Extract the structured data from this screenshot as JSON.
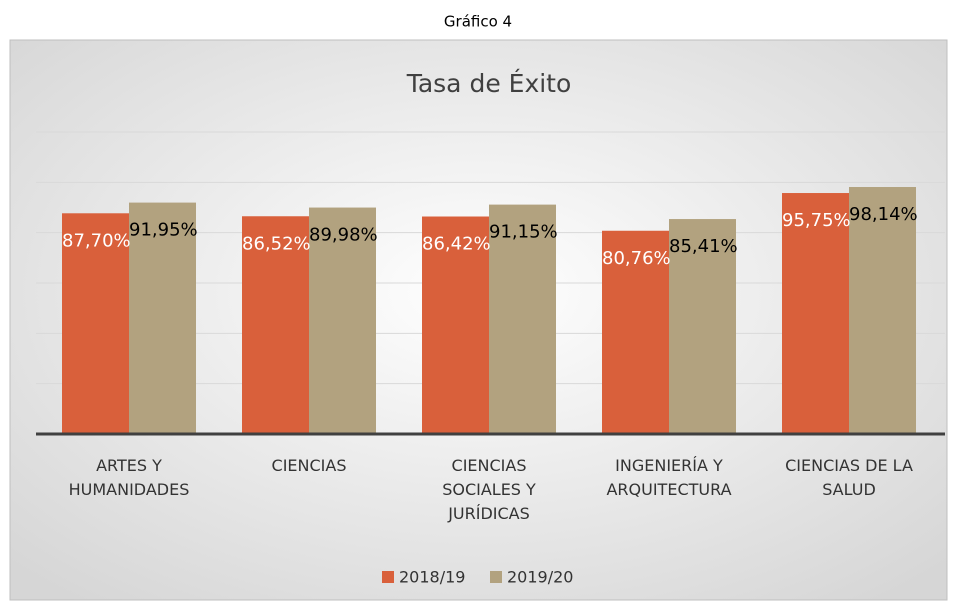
{
  "caption": "Gráfico 4",
  "chart_data": {
    "type": "bar",
    "title": "Tasa de Éxito",
    "categories": [
      "ARTES Y HUMANIDADES",
      "CIENCIAS",
      "CIENCIAS SOCIALES Y JURÍDICAS",
      "INGENIERÍA Y ARQUITECTURA",
      "CIENCIAS DE LA SALUD"
    ],
    "series": [
      {
        "name": "2018/19",
        "color": "#d9603b",
        "values": [
          87.7,
          86.52,
          86.42,
          80.76,
          95.75
        ],
        "value_labels": [
          "87,70%",
          "86,52%",
          "86,42%",
          "80,76%",
          "95,75%"
        ]
      },
      {
        "name": "2019/20",
        "color": "#b2a27f",
        "values": [
          91.95,
          89.98,
          91.15,
          85.41,
          98.14
        ],
        "value_labels": [
          "91,95%",
          "89,98%",
          "91,15%",
          "85,41%",
          "98,14%"
        ]
      }
    ],
    "ylim": [
      0,
      120
    ],
    "yticks": [
      0,
      20,
      40,
      60,
      80,
      100,
      120
    ],
    "grid": true,
    "legend": "bottom"
  }
}
